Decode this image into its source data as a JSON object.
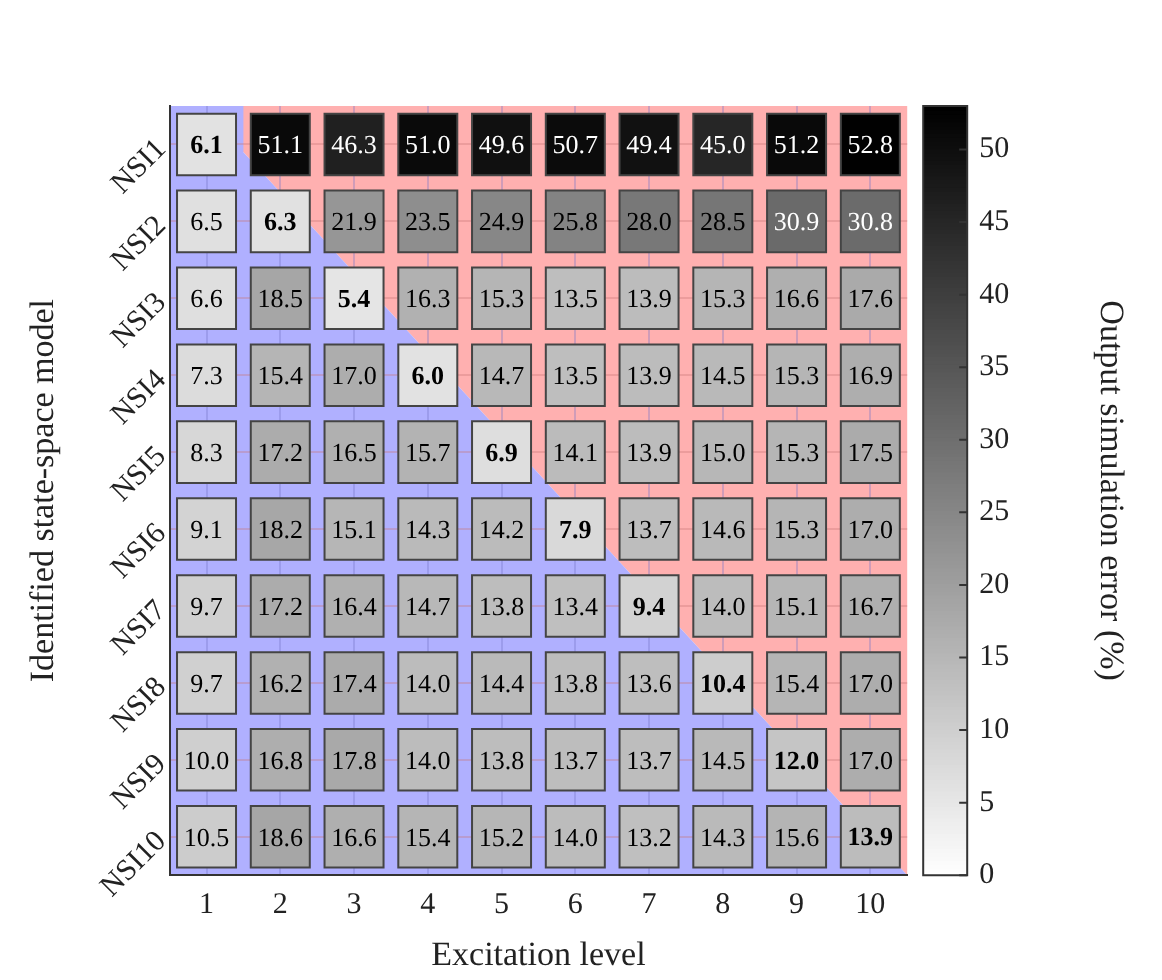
{
  "chart_data": {
    "type": "heatmap",
    "xlabel": "Excitation level",
    "ylabel": "Identified state-space model",
    "clabel": "Output simulation error (%)",
    "categories": [
      "1",
      "2",
      "3",
      "4",
      "5",
      "6",
      "7",
      "8",
      "9",
      "10"
    ],
    "y_categories": [
      "NSI1",
      "NSI2",
      "NSI3",
      "NSI4",
      "NSI5",
      "NSI6",
      "NSI7",
      "NSI8",
      "NSI9",
      "NSI10"
    ],
    "cells": [
      [
        6.1,
        51.1,
        46.3,
        51.0,
        49.6,
        50.7,
        49.4,
        45.0,
        51.2,
        52.8
      ],
      [
        6.5,
        6.3,
        21.9,
        23.5,
        24.9,
        25.8,
        28.0,
        28.5,
        30.9,
        30.8
      ],
      [
        6.6,
        18.5,
        5.4,
        16.3,
        15.3,
        13.5,
        13.9,
        15.3,
        16.6,
        17.6
      ],
      [
        7.3,
        15.4,
        17.0,
        6.0,
        14.7,
        13.5,
        13.9,
        14.5,
        15.3,
        16.9
      ],
      [
        8.3,
        17.2,
        16.5,
        15.7,
        6.9,
        14.1,
        13.9,
        15.0,
        15.3,
        17.5
      ],
      [
        9.1,
        18.2,
        15.1,
        14.3,
        14.2,
        7.9,
        13.7,
        14.6,
        15.3,
        17.0
      ],
      [
        9.7,
        17.2,
        16.4,
        14.7,
        13.8,
        13.4,
        9.4,
        14.0,
        15.1,
        16.7
      ],
      [
        9.7,
        16.2,
        17.4,
        14.0,
        14.4,
        13.8,
        13.6,
        10.4,
        15.4,
        17.0
      ],
      [
        10.0,
        16.8,
        17.8,
        14.0,
        13.8,
        13.7,
        13.7,
        14.5,
        12.0,
        17.0
      ],
      [
        10.5,
        18.6,
        16.6,
        15.4,
        15.2,
        14.0,
        13.2,
        14.3,
        15.6,
        13.9
      ]
    ],
    "cell_labels": [
      [
        "6.1",
        "51.1",
        "46.3",
        "51.0",
        "49.6",
        "50.7",
        "49.4",
        "45.0",
        "51.2",
        "52.8"
      ],
      [
        "6.5",
        "6.3",
        "21.9",
        "23.5",
        "24.9",
        "25.8",
        "28.0",
        "28.5",
        "30.9",
        "30.8"
      ],
      [
        "6.6",
        "18.5",
        "5.4",
        "16.3",
        "15.3",
        "13.5",
        "13.9",
        "15.3",
        "16.6",
        "17.6"
      ],
      [
        "7.3",
        "15.4",
        "17.0",
        "6.0",
        "14.7",
        "13.5",
        "13.9",
        "14.5",
        "15.3",
        "16.9"
      ],
      [
        "8.3",
        "17.2",
        "16.5",
        "15.7",
        "6.9",
        "14.1",
        "13.9",
        "15.0",
        "15.3",
        "17.5"
      ],
      [
        "9.1",
        "18.2",
        "15.1",
        "14.3",
        "14.2",
        "7.9",
        "13.7",
        "14.6",
        "15.3",
        "17.0"
      ],
      [
        "9.7",
        "17.2",
        "16.4",
        "14.7",
        "13.8",
        "13.4",
        "9.4",
        "14.0",
        "15.1",
        "16.7"
      ],
      [
        "9.7",
        "16.2",
        "17.4",
        "14.0",
        "14.4",
        "13.8",
        "13.6",
        "10.4",
        "15.4",
        "17.0"
      ],
      [
        "10.0",
        "16.8",
        "17.8",
        "14.0",
        "13.8",
        "13.7",
        "13.7",
        "14.5",
        "12.0",
        "17.0"
      ],
      [
        "10.5",
        "18.6",
        "16.6",
        "15.4",
        "15.2",
        "14.0",
        "13.2",
        "14.3",
        "15.6",
        "13.9"
      ]
    ],
    "clim": [
      0,
      53
    ],
    "cticks": [
      0,
      5,
      10,
      15,
      20,
      25,
      30,
      35,
      40,
      45,
      50
    ],
    "grid": true,
    "data_labels": true
  }
}
